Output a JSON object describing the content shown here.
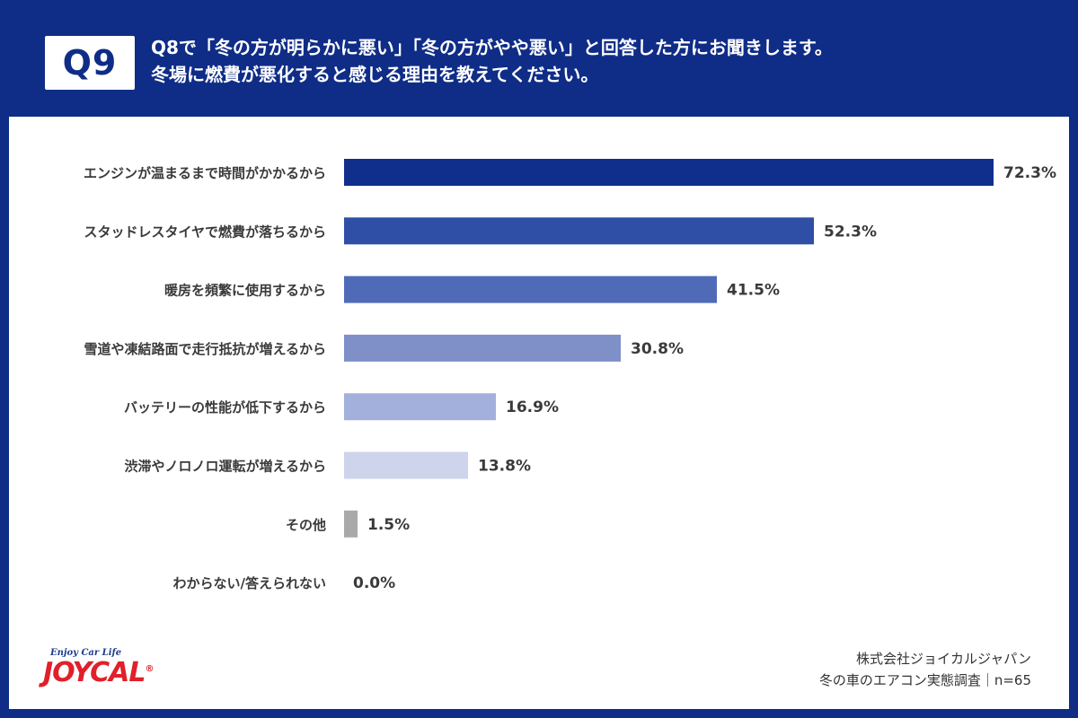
{
  "header": {
    "badge": "Q9",
    "question_line1": "Q8で「冬の方が明らかに悪い」「冬の方がやや悪い」と回答した方にお聞きします。",
    "question_line2": "冬場に燃費が悪化すると感じる理由を教えてください。"
  },
  "chart_data": {
    "type": "bar",
    "orientation": "horizontal",
    "categories": [
      "エンジンが温まるまで時間がかかるから",
      "スタッドレスタイヤで燃費が落ちるから",
      "暖房を頻繁に使用するから",
      "雪道や凍結路面で走行抵抗が増えるから",
      "バッテリーの性能が低下するから",
      "渋滞やノロノロ運転が増えるから",
      "その他",
      "わからない/答えられない"
    ],
    "values": [
      72.3,
      52.3,
      41.5,
      30.8,
      16.9,
      13.8,
      1.5,
      0.0
    ],
    "value_labels": [
      "72.3%",
      "52.3%",
      "41.5%",
      "30.8%",
      "16.9%",
      "13.8%",
      "1.5%",
      "0.0%"
    ],
    "colors": [
      "#102f8c",
      "#2f4ea6",
      "#4f6bb8",
      "#7f8fc8",
      "#a4b0dc",
      "#cdd4ec",
      "#a9a9a9",
      "#a9a9a9"
    ],
    "xlim": [
      0,
      100
    ],
    "grid": false,
    "legend": "none",
    "title": "",
    "xlabel": "",
    "ylabel": ""
  },
  "logo": {
    "tagline": "Enjoy Car Life",
    "name": "JOYCAL",
    "mark": "®"
  },
  "footer": {
    "company": "株式会社ジョイカルジャパン",
    "survey": "冬の車のエアコン実態調査｜n=65"
  }
}
